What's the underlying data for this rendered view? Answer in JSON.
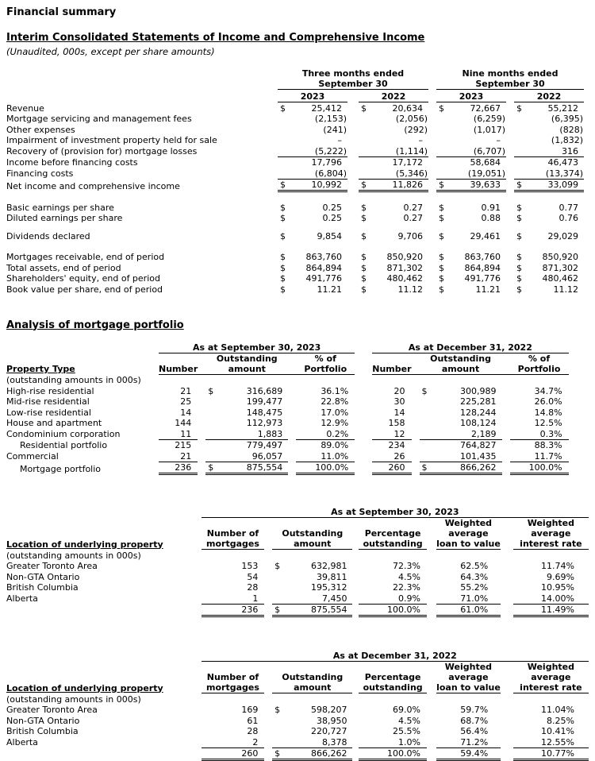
{
  "header": {
    "page_title": "Financial summary",
    "statement_title": "Interim Consolidated Statements of Income and Comprehensive Income",
    "statement_subtitle": "(Unaudited, 000s, except per share amounts)"
  },
  "income_statement": {
    "group_headers": [
      "Three months ended\nSeptember 30",
      "Nine months ended\nSeptember 30"
    ],
    "year_headers": [
      "2023",
      "2022",
      "2023",
      "2022"
    ],
    "sections": [
      {
        "rows": [
          {
            "label": "Revenue",
            "d": "$",
            "u": "",
            "values": [
              "25,412",
              "20,634",
              "72,667",
              "55,212"
            ]
          },
          {
            "label": "Mortgage servicing and management fees",
            "d": "",
            "u": "",
            "values": [
              "(2,153)",
              "(2,056)",
              "(6,259)",
              "(6,395)"
            ]
          },
          {
            "label": "Other expenses",
            "d": "",
            "u": "",
            "values": [
              "(241)",
              "(292)",
              "(1,017)",
              "(828)"
            ]
          },
          {
            "label": "Impairment of investment property held for sale",
            "d": "",
            "u": "",
            "values": [
              "–",
              "–",
              "–",
              "(1,832)"
            ]
          },
          {
            "label": "Recovery of (provision for) mortgage losses",
            "d": "",
            "u": "s",
            "values": [
              "(5,222)",
              "(1,114)",
              "(6,707)",
              "316"
            ]
          },
          {
            "label": "Income before financing costs",
            "d": "",
            "u": "",
            "values": [
              "17,796",
              "17,172",
              "58,684",
              "46,473"
            ]
          },
          {
            "label": "Financing costs",
            "d": "",
            "u": "s",
            "values": [
              "(6,804)",
              "(5,346)",
              "(19,051)",
              "(13,374)"
            ]
          },
          {
            "label": "Net income and comprehensive income",
            "d": "$",
            "u": "d",
            "values": [
              "10,992",
              "11,826",
              "39,633",
              "33,099"
            ]
          }
        ]
      },
      {
        "rows": [
          {
            "label": "Basic earnings per share",
            "d": "$",
            "u": "",
            "values": [
              "0.25",
              "0.27",
              "0.91",
              "0.77"
            ]
          },
          {
            "label": "Diluted earnings per share",
            "d": "$",
            "u": "",
            "values": [
              "0.25",
              "0.27",
              "0.88",
              "0.76"
            ]
          }
        ]
      },
      {
        "rows": [
          {
            "label": "Dividends declared",
            "d": "$",
            "u": "",
            "values": [
              "9,854",
              "9,706",
              "29,461",
              "29,029"
            ]
          }
        ]
      },
      {
        "rows": [
          {
            "label": "Mortgages receivable, end of period",
            "d": "$",
            "u": "",
            "values": [
              "863,760",
              "850,920",
              "863,760",
              "850,920"
            ]
          },
          {
            "label": "Total assets, end of period",
            "d": "$",
            "u": "",
            "values": [
              "864,894",
              "871,302",
              "864,894",
              "871,302"
            ]
          },
          {
            "label": "Shareholders' equity, end of period",
            "d": "$",
            "u": "",
            "values": [
              "491,776",
              "480,462",
              "491,776",
              "480,462"
            ]
          },
          {
            "label": "Book value per share, end of period",
            "d": "$",
            "u": "",
            "values": [
              "11.21",
              "11.12",
              "11.21",
              "11.12"
            ]
          }
        ]
      }
    ]
  },
  "portfolio": {
    "section_title": "Analysis of mortgage portfolio",
    "property_table": {
      "group_headers": [
        "As at September 30, 2023",
        "As at December 31, 2022"
      ],
      "col_headers": {
        "number": "Number",
        "amount": "Outstanding\namount",
        "pct": "% of\nPortfolio"
      },
      "label_header": "Property Type",
      "label_note": "(outstanding amounts in 000s)",
      "rows": [
        {
          "label": "High-rise residential",
          "indent": false,
          "d": "$",
          "u": "",
          "n1": "21",
          "a1": "316,689",
          "p1": "36.1%",
          "n2": "20",
          "a2": "300,989",
          "p2": "34.7%"
        },
        {
          "label": "Mid-rise residential",
          "indent": false,
          "d": "",
          "u": "",
          "n1": "25",
          "a1": "199,477",
          "p1": "22.8%",
          "n2": "30",
          "a2": "225,281",
          "p2": "26.0%"
        },
        {
          "label": "Low-rise residential",
          "indent": false,
          "d": "",
          "u": "",
          "n1": "14",
          "a1": "148,475",
          "p1": "17.0%",
          "n2": "14",
          "a2": "128,244",
          "p2": "14.8%"
        },
        {
          "label": "House and apartment",
          "indent": false,
          "d": "",
          "u": "",
          "n1": "144",
          "a1": "112,973",
          "p1": "12.9%",
          "n2": "158",
          "a2": "108,124",
          "p2": "12.5%"
        },
        {
          "label": "Condominium corporation",
          "indent": false,
          "d": "",
          "u": "s",
          "n1": "11",
          "a1": "1,883",
          "p1": "0.2%",
          "n2": "12",
          "a2": "2,189",
          "p2": "0.3%"
        },
        {
          "label": "Residential portfolio",
          "indent": true,
          "d": "",
          "u": "",
          "n1": "215",
          "a1": "779,497",
          "p1": "89.0%",
          "n2": "234",
          "a2": "764,827",
          "p2": "88.3%"
        },
        {
          "label": "Commercial",
          "indent": false,
          "d": "",
          "u": "s",
          "n1": "21",
          "a1": "96,057",
          "p1": "11.0%",
          "n2": "26",
          "a2": "101,435",
          "p2": "11.7%"
        },
        {
          "label": "Mortgage portfolio",
          "indent": true,
          "d": "$",
          "u": "d",
          "n1": "236",
          "a1": "875,554",
          "p1": "100.0%",
          "n2": "260",
          "a2": "866,262",
          "p2": "100.0%"
        }
      ]
    },
    "location_tables": [
      {
        "group_header": "As at September 30, 2023",
        "label_header": "Location of underlying property",
        "label_note": "(outstanding amounts in 000s)",
        "col_headers": {
          "num": "Number of\nmortgages",
          "amount": "Outstanding\namount",
          "pct": "Percentage\noutstanding",
          "ltv": "Weighted\naverage\nloan to value",
          "rate": "Weighted\naverage\ninterest rate"
        },
        "rows": [
          {
            "label": "Greater Toronto Area",
            "d": "$",
            "u": "",
            "num": "153",
            "amount": "632,981",
            "pct": "72.3%",
            "ltv": "62.5%",
            "rate": "11.74%"
          },
          {
            "label": "Non-GTA Ontario",
            "d": "",
            "u": "",
            "num": "54",
            "amount": "39,811",
            "pct": "4.5%",
            "ltv": "64.3%",
            "rate": "9.69%"
          },
          {
            "label": "British Columbia",
            "d": "",
            "u": "",
            "num": "28",
            "amount": "195,312",
            "pct": "22.3%",
            "ltv": "55.2%",
            "rate": "10.95%"
          },
          {
            "label": "Alberta",
            "d": "",
            "u": "s",
            "num": "1",
            "amount": "7,450",
            "pct": "0.9%",
            "ltv": "71.0%",
            "rate": "14.00%"
          }
        ],
        "total": {
          "label": "",
          "d": "$",
          "u": "d",
          "num": "236",
          "amount": "875,554",
          "pct": "100.0%",
          "ltv": "61.0%",
          "rate": "11.49%"
        }
      },
      {
        "group_header": "As at December 31, 2022",
        "label_header": "Location of underlying property",
        "label_note": "(outstanding amounts in 000s)",
        "col_headers": {
          "num": "Number of\nmortgages",
          "amount": "Outstanding\namount",
          "pct": "Percentage\noutstanding",
          "ltv": "Weighted\naverage\nloan to value",
          "rate": "Weighted\naverage\ninterest rate"
        },
        "rows": [
          {
            "label": "Greater Toronto Area",
            "d": "$",
            "u": "",
            "num": "169",
            "amount": "598,207",
            "pct": "69.0%",
            "ltv": "59.7%",
            "rate": "11.04%"
          },
          {
            "label": "Non-GTA Ontario",
            "d": "",
            "u": "",
            "num": "61",
            "amount": "38,950",
            "pct": "4.5%",
            "ltv": "68.7%",
            "rate": "8.25%"
          },
          {
            "label": "British Columbia",
            "d": "",
            "u": "",
            "num": "28",
            "amount": "220,727",
            "pct": "25.5%",
            "ltv": "56.4%",
            "rate": "10.41%"
          },
          {
            "label": "Alberta",
            "d": "",
            "u": "s",
            "num": "2",
            "amount": "8,378",
            "pct": "1.0%",
            "ltv": "71.2%",
            "rate": "12.55%"
          }
        ],
        "total": {
          "label": "",
          "d": "$",
          "u": "d",
          "num": "260",
          "amount": "866,262",
          "pct": "100.0%",
          "ltv": "59.4%",
          "rate": "10.77%"
        }
      }
    ]
  }
}
